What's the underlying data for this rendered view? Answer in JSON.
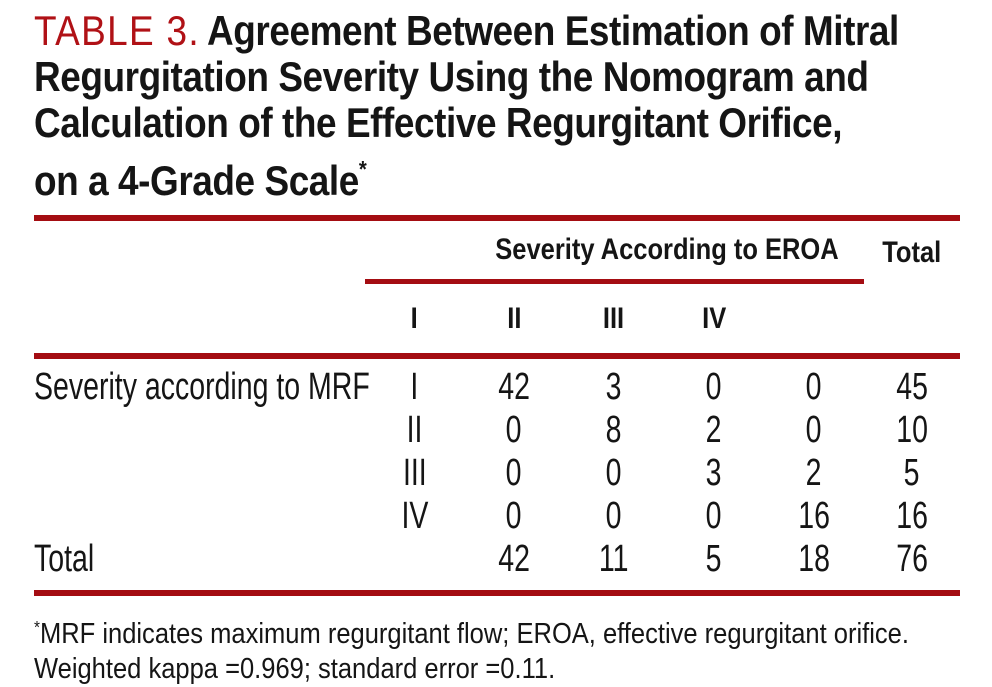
{
  "colors": {
    "rule_red": "#A40D12",
    "table_label_red": "#B01116",
    "text_black": "#151515"
  },
  "title": {
    "label": "TABLE 3.",
    "lines": [
      "Agreement Between Estimation of Mitral",
      "Regurgitation Severity Using the Nomogram and",
      "Calculation of the Effective Regurgitant Orifice,",
      "on a 4-Grade Scale"
    ],
    "asterisk": "*"
  },
  "table": {
    "spanner_header": "Severity According to EROA",
    "total_header": "Total",
    "eroa_grade_headers": [
      "I",
      "II",
      "III",
      "IV"
    ],
    "stub_label": "Severity according to MRF",
    "rows": [
      {
        "mrf_grade": "I",
        "values": [
          "42",
          "3",
          "0",
          "0"
        ],
        "total": "45"
      },
      {
        "mrf_grade": "II",
        "values": [
          "0",
          "8",
          "2",
          "0"
        ],
        "total": "10"
      },
      {
        "mrf_grade": "III",
        "values": [
          "0",
          "0",
          "3",
          "2"
        ],
        "total": "5"
      },
      {
        "mrf_grade": "IV",
        "values": [
          "0",
          "0",
          "0",
          "16"
        ],
        "total": "16"
      }
    ],
    "totals_row": {
      "label": "Total",
      "values": [
        "42",
        "11",
        "5",
        "18"
      ],
      "total": "76"
    }
  },
  "footnote": {
    "asterisk": "*",
    "line1": "MRF indicates maximum regurgitant flow; EROA, effective regurgitant orifice.",
    "line2": "Weighted kappa =0.969; standard error =0.11."
  }
}
